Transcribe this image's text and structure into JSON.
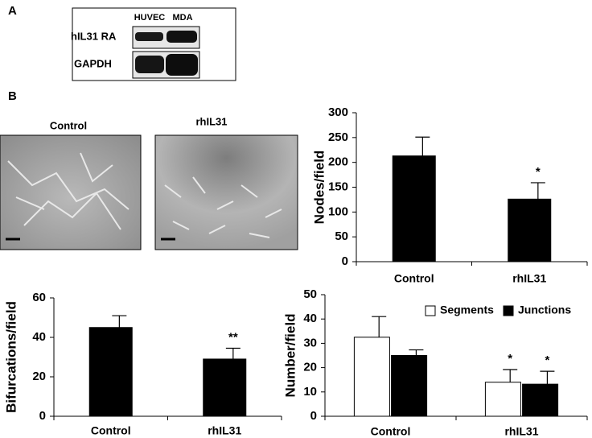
{
  "panels": {
    "a": {
      "label": "A",
      "columns": [
        "HUVEC",
        "MDA"
      ],
      "rows": [
        "hIL31 RA",
        "GAPDH"
      ]
    },
    "b": {
      "label": "B",
      "images": [
        "Control",
        "rhIL31"
      ]
    }
  },
  "chart_data": [
    {
      "type": "bar",
      "ylabel": "Nodes/field",
      "categories": [
        "Control",
        "rhIL31"
      ],
      "values": [
        213,
        126
      ],
      "errors": [
        38,
        33
      ],
      "annotations": [
        null,
        "*"
      ],
      "color": "#000000",
      "ylim": [
        0,
        300
      ],
      "yticks": [
        0,
        50,
        100,
        150,
        200,
        250,
        300
      ]
    },
    {
      "type": "bar",
      "ylabel": "Bifurcations/field",
      "categories": [
        "Control",
        "rhIL31"
      ],
      "values": [
        45,
        29
      ],
      "errors": [
        6,
        5.5
      ],
      "annotations": [
        null,
        "**"
      ],
      "color": "#000000",
      "ylim": [
        0,
        60
      ],
      "yticks": [
        0,
        20,
        40,
        60
      ]
    },
    {
      "type": "bar",
      "ylabel": "Number/field",
      "categories": [
        "Control",
        "rhIL31"
      ],
      "series": [
        {
          "name": "Segments",
          "color": "#ffffff",
          "values": [
            32.5,
            14
          ],
          "errors": [
            8.5,
            5.2
          ],
          "annotations": [
            null,
            "*"
          ]
        },
        {
          "name": "Junctions",
          "color": "#000000",
          "values": [
            25,
            13.2
          ],
          "errors": [
            2.3,
            5.3
          ],
          "annotations": [
            null,
            "*"
          ]
        }
      ],
      "ylim": [
        0,
        50
      ],
      "yticks": [
        0,
        10,
        20,
        30,
        40,
        50
      ]
    }
  ]
}
